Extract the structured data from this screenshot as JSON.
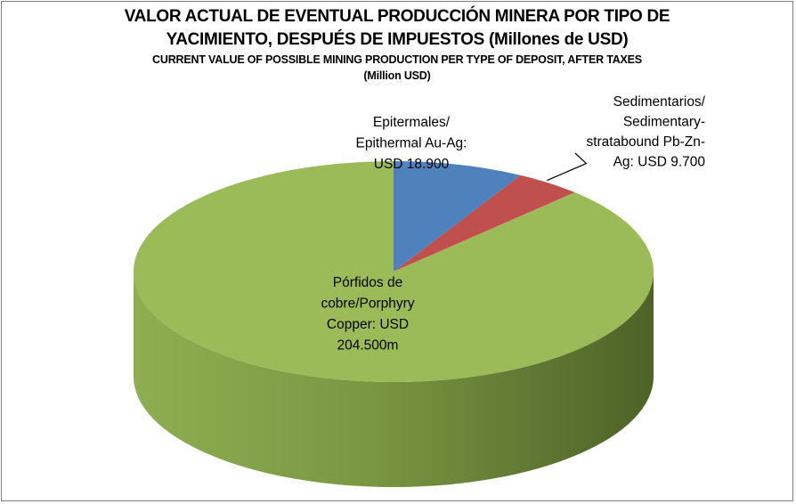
{
  "chart_data": {
    "type": "pie",
    "style": "3d",
    "title_lines": [
      "VALOR ACTUAL DE EVENTUAL PRODUCCIÓN MINERA POR TIPO DE",
      "YACIMIENTO, DESPUÉS DE IMPUESTOS (Millones de USD)"
    ],
    "subtitle_lines": [
      "CURRENT VALUE OF POSSIBLE MINING PRODUCTION PER TYPE OF DEPOSIT, AFTER TAXES",
      "(Million USD)"
    ],
    "slices": [
      {
        "value": 18900,
        "color": "#4f81bd",
        "side_color": "#3a6391",
        "label_lines": [
          "Epitermales/",
          "Epithermal Au-Ag:",
          "USD 18.900"
        ]
      },
      {
        "value": 9700,
        "color": "#c0504d",
        "side_color": "#8f3a38",
        "label_lines": [
          "Sedimentarios/",
          "Sedimentary-",
          "stratabound Pb-Zn-",
          "Ag: USD 9.700"
        ]
      },
      {
        "value": 204500,
        "color": "#9bbb59",
        "side_color": "#6f8a3a",
        "label_lines": [
          "Pórfidos de",
          "cobre/Porphyry",
          "Copper: USD",
          "204.500m"
        ]
      }
    ]
  }
}
